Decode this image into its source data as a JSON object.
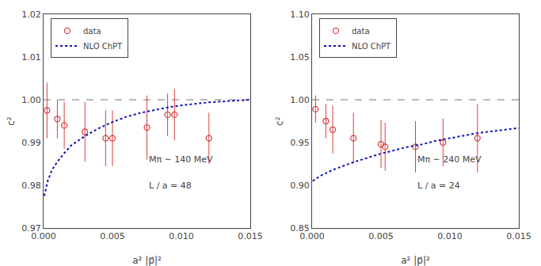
{
  "chart_data": [
    {
      "type": "scatter",
      "xlabel": "a² |p⃗|²",
      "ylabel": "c²",
      "xlim": [
        0.0,
        0.015
      ],
      "xticks": [
        {
          "value": 0.0,
          "label": "0.000"
        },
        0.005,
        {
          "value": 0.01,
          "label": "0.010"
        },
        0.015
      ],
      "ylim": [
        0.97,
        1.02
      ],
      "yticks": [
        0.97,
        0.98,
        0.99,
        {
          "value": 1.0,
          "label": "1.00"
        },
        1.01,
        1.02
      ],
      "grid": false,
      "legend": "upper left",
      "annotations": [
        "Mπ ∼ 140 MeV",
        "L / a = 48"
      ],
      "reference_line": {
        "value": 1.0,
        "color": "#777777",
        "line_style": "dashed"
      },
      "series": [
        {
          "name": "data",
          "type": "scatter",
          "marker": "open circle",
          "color": "#d94040",
          "x": [
            0.00025,
            0.001,
            0.0015,
            0.003,
            0.0045,
            0.005,
            0.0075,
            0.009,
            0.0095,
            0.012
          ],
          "values": [
            0.9975,
            0.9955,
            0.994,
            0.9925,
            0.991,
            0.991,
            0.9935,
            0.9965,
            0.9965,
            0.991
          ],
          "errors": [
            0.0065,
            0.0045,
            0.0055,
            0.007,
            0.0065,
            0.0065,
            0.0075,
            0.005,
            0.006,
            0.006
          ]
        },
        {
          "name": "NLO ChPT",
          "type": "line",
          "line_style": "dotted",
          "color": "#1111bb",
          "x": [
            5e-05,
            0.0003,
            0.0006,
            0.001,
            0.0015,
            0.002,
            0.003,
            0.004,
            0.005,
            0.006,
            0.007,
            0.008,
            0.009,
            0.01,
            0.011,
            0.012,
            0.013,
            0.014,
            0.015
          ],
          "values": [
            0.9775,
            0.981,
            0.9835,
            0.9855,
            0.9875,
            0.9893,
            0.9915,
            0.9933,
            0.9948,
            0.996,
            0.9969,
            0.9976,
            0.9982,
            0.9987,
            0.9991,
            0.9994,
            0.9996,
            0.9998,
            1.0
          ]
        }
      ]
    },
    {
      "type": "scatter",
      "xlabel": "a² |p⃗|²",
      "ylabel": "c²",
      "xlim": [
        0.0,
        0.015
      ],
      "xticks": [
        {
          "value": 0.0,
          "label": "0.000"
        },
        0.005,
        {
          "value": 0.01,
          "label": "0.010"
        },
        0.015
      ],
      "ylim": [
        0.85,
        1.1
      ],
      "yticks": [
        0.85,
        {
          "value": 0.9,
          "label": "0.90"
        },
        0.95,
        {
          "value": 1.0,
          "label": "1.00"
        },
        1.05,
        {
          "value": 1.1,
          "label": "1.10"
        }
      ],
      "grid": false,
      "legend": "upper left",
      "annotations": [
        "Mπ ∼ 240 MeV",
        "L / a = 24"
      ],
      "reference_line": {
        "value": 1.0,
        "color": "#777777",
        "line_style": "dashed"
      },
      "series": [
        {
          "name": "data",
          "type": "scatter",
          "marker": "open circle",
          "color": "#d94040",
          "x": [
            0.00025,
            0.001,
            0.0015,
            0.003,
            0.005,
            0.0053,
            0.0075,
            0.0095,
            0.012
          ],
          "values": [
            0.989,
            0.975,
            0.965,
            0.955,
            0.948,
            0.945,
            0.945,
            0.95,
            0.955
          ],
          "errors": [
            0.016,
            0.02,
            0.028,
            0.03,
            0.028,
            0.028,
            0.03,
            0.028,
            0.04
          ]
        },
        {
          "name": "NLO ChPT",
          "type": "line",
          "line_style": "dotted",
          "color": "#1111bb",
          "x": [
            5e-05,
            0.0003,
            0.0006,
            0.001,
            0.0015,
            0.002,
            0.003,
            0.004,
            0.005,
            0.006,
            0.007,
            0.008,
            0.009,
            0.01,
            0.011,
            0.012,
            0.013,
            0.014,
            0.015
          ],
          "values": [
            0.905,
            0.908,
            0.911,
            0.914,
            0.918,
            0.921,
            0.927,
            0.932,
            0.937,
            0.941,
            0.945,
            0.948,
            0.952,
            0.955,
            0.958,
            0.961,
            0.963,
            0.965,
            0.967
          ]
        }
      ]
    }
  ]
}
